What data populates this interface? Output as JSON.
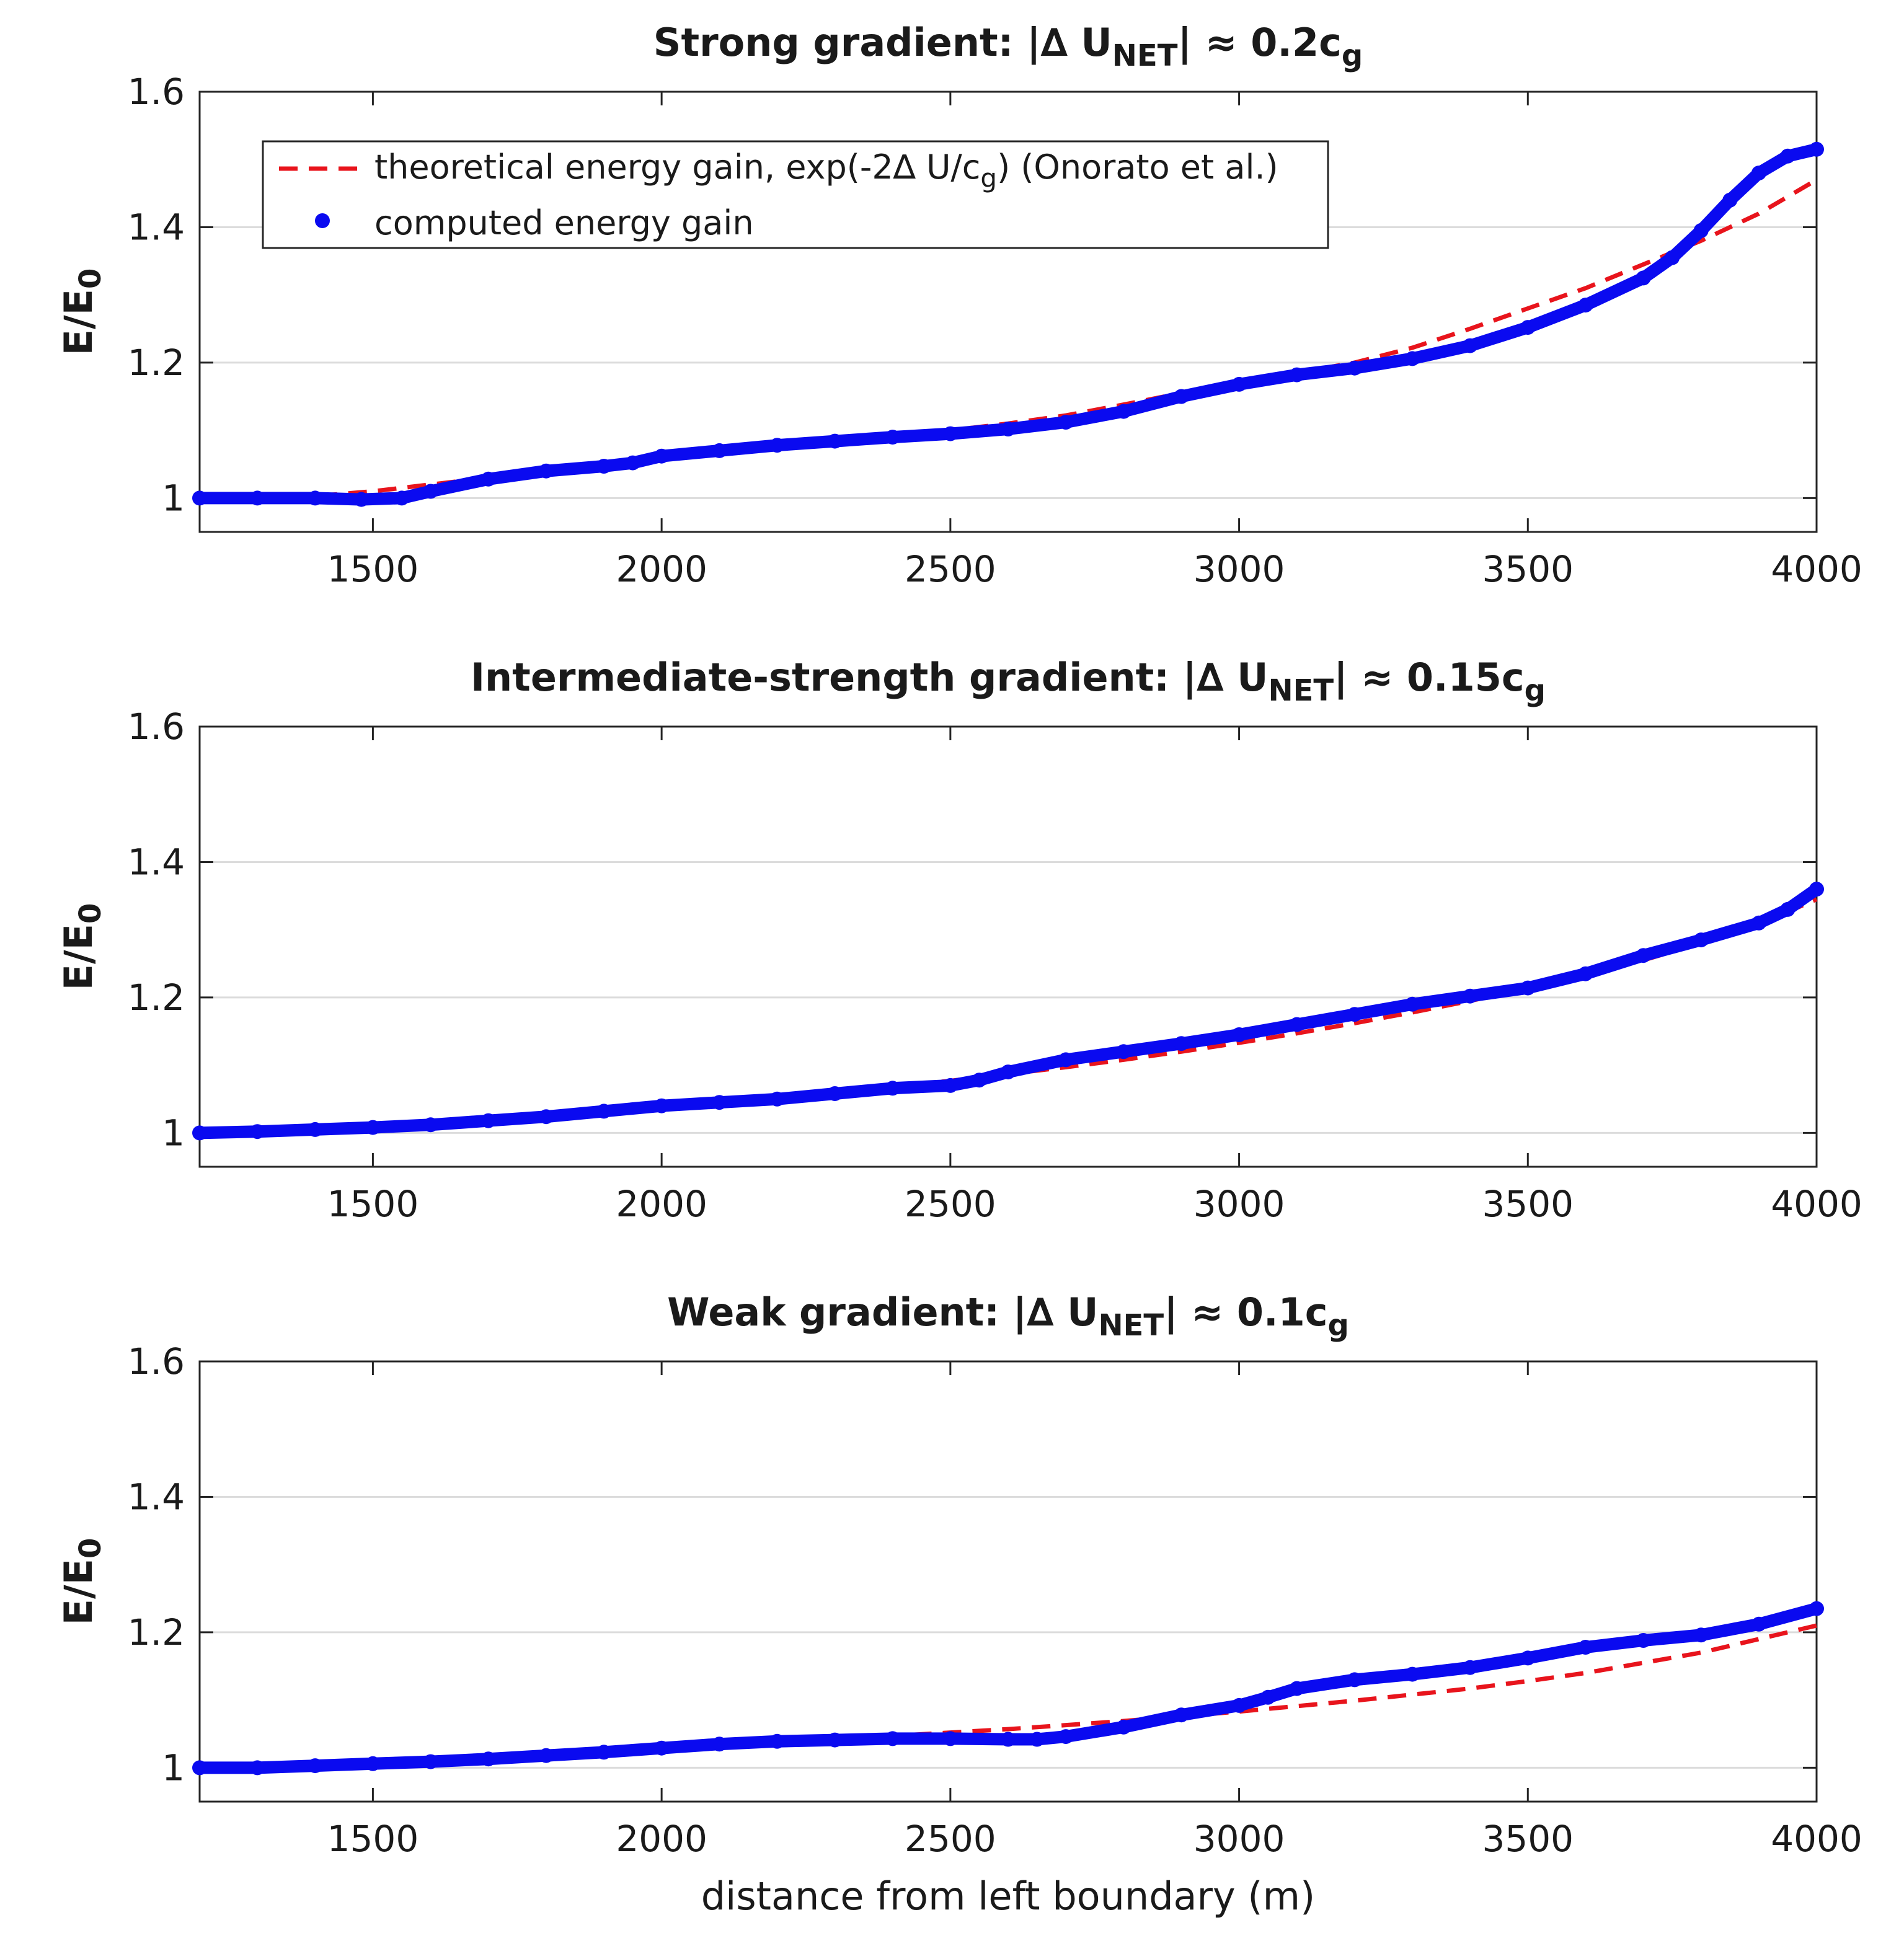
{
  "colors": {
    "theory": "#e8141c",
    "computed": "#0a0af0",
    "axis": "#262626",
    "grid": "#dcdcdc"
  },
  "legend": {
    "theory_label_main": "theoretical energy gain, exp(-2∆ U/c",
    "theory_label_sub": "g",
    "theory_label_tail": ") (Onorato et al.)",
    "computed_label": "computed energy gain",
    "placement": "top-left"
  },
  "xlabel": "distance from left boundary (m)",
  "ylabel_main": "E/E",
  "ylabel_sub": "0",
  "chart_data": [
    {
      "type": "line",
      "title_main": "Strong gradient: |∆ U",
      "title_sub1": "NET",
      "title_mid": "| ≈ 0.2c",
      "title_sub2": "g",
      "xlim": [
        1200,
        4000
      ],
      "ylim": [
        0.95,
        1.6
      ],
      "xticks": [
        "1500",
        "2000",
        "2500",
        "3000",
        "3500",
        "4000"
      ],
      "yticks": [
        "1",
        "1.2",
        "1.4",
        "1.6"
      ],
      "grid": "horizontal",
      "show_legend": true,
      "series": [
        {
          "name": "theoretical energy gain, exp(-2∆ U/c_g) (Onorato et al.)",
          "style": "dashed",
          "x": [
            1200,
            1300,
            1400,
            1500,
            1600,
            1700,
            1800,
            1900,
            2000,
            2100,
            2200,
            2300,
            2400,
            2500,
            2600,
            2700,
            2800,
            2900,
            3000,
            3100,
            3200,
            3300,
            3400,
            3500,
            3600,
            3700,
            3800,
            3900,
            4000
          ],
          "y": [
            1.0,
            1.0,
            1.003,
            1.01,
            1.02,
            1.03,
            1.04,
            1.05,
            1.058,
            1.066,
            1.075,
            1.083,
            1.09,
            1.1,
            1.11,
            1.122,
            1.138,
            1.155,
            1.17,
            1.185,
            1.2,
            1.222,
            1.25,
            1.28,
            1.31,
            1.345,
            1.38,
            1.42,
            1.47
          ]
        },
        {
          "name": "computed energy gain",
          "style": "dots",
          "x": [
            1200,
            1300,
            1400,
            1480,
            1550,
            1600,
            1700,
            1800,
            1900,
            1950,
            2000,
            2100,
            2200,
            2300,
            2400,
            2500,
            2600,
            2700,
            2800,
            2900,
            3000,
            3100,
            3200,
            3300,
            3400,
            3500,
            3600,
            3700,
            3750,
            3800,
            3850,
            3900,
            3950,
            4000
          ],
          "y": [
            1.0,
            1.0,
            1.0,
            0.998,
            1.0,
            1.01,
            1.028,
            1.04,
            1.047,
            1.052,
            1.062,
            1.07,
            1.078,
            1.084,
            1.09,
            1.095,
            1.102,
            1.112,
            1.128,
            1.15,
            1.168,
            1.182,
            1.192,
            1.206,
            1.225,
            1.252,
            1.285,
            1.325,
            1.355,
            1.395,
            1.44,
            1.48,
            1.505,
            1.515
          ]
        }
      ]
    },
    {
      "type": "line",
      "title_main": "Intermediate-strength gradient: |∆ U",
      "title_sub1": "NET",
      "title_mid": "| ≈ 0.15c",
      "title_sub2": "g",
      "xlim": [
        1200,
        4000
      ],
      "ylim": [
        0.95,
        1.6
      ],
      "xticks": [
        "1500",
        "2000",
        "2500",
        "3000",
        "3500",
        "4000"
      ],
      "yticks": [
        "1",
        "1.2",
        "1.4",
        "1.6"
      ],
      "grid": "horizontal",
      "show_legend": false,
      "series": [
        {
          "name": "theoretical energy gain, exp(-2∆ U/c_g) (Onorato et al.)",
          "style": "dashed",
          "x": [
            1200,
            1300,
            1400,
            1500,
            1600,
            1700,
            1800,
            1900,
            2000,
            2100,
            2200,
            2300,
            2400,
            2500,
            2600,
            2700,
            2800,
            2900,
            3000,
            3100,
            3200,
            3300,
            3400,
            3500,
            3600,
            3700,
            3800,
            3900,
            4000
          ],
          "y": [
            1.0,
            1.003,
            1.006,
            1.01,
            1.014,
            1.019,
            1.025,
            1.032,
            1.039,
            1.045,
            1.052,
            1.06,
            1.068,
            1.077,
            1.087,
            1.097,
            1.108,
            1.12,
            1.133,
            1.147,
            1.162,
            1.178,
            1.195,
            1.213,
            1.233,
            1.255,
            1.28,
            1.308,
            1.345
          ]
        },
        {
          "name": "computed energy gain",
          "style": "dots",
          "x": [
            1200,
            1300,
            1400,
            1500,
            1600,
            1700,
            1800,
            1900,
            2000,
            2100,
            2200,
            2300,
            2400,
            2500,
            2550,
            2600,
            2700,
            2800,
            2900,
            3000,
            3100,
            3200,
            3300,
            3400,
            3500,
            3600,
            3700,
            3800,
            3900,
            3950,
            4000
          ],
          "y": [
            1.0,
            1.002,
            1.005,
            1.008,
            1.012,
            1.018,
            1.024,
            1.032,
            1.04,
            1.045,
            1.05,
            1.058,
            1.066,
            1.07,
            1.078,
            1.09,
            1.108,
            1.12,
            1.132,
            1.145,
            1.16,
            1.175,
            1.19,
            1.202,
            1.214,
            1.235,
            1.262,
            1.285,
            1.31,
            1.33,
            1.36
          ]
        }
      ]
    },
    {
      "type": "line",
      "title_main": "Weak gradient: |∆ U",
      "title_sub1": "NET",
      "title_mid": "| ≈ 0.1c",
      "title_sub2": "g",
      "xlim": [
        1200,
        4000
      ],
      "ylim": [
        0.95,
        1.6
      ],
      "xticks": [
        "1500",
        "2000",
        "2500",
        "3000",
        "3500",
        "4000"
      ],
      "yticks": [
        "1",
        "1.2",
        "1.4",
        "1.6"
      ],
      "grid": "horizontal",
      "show_legend": false,
      "series": [
        {
          "name": "theoretical energy gain, exp(-2∆ U/c_g) (Onorato et al.)",
          "style": "dashed",
          "x": [
            1200,
            1300,
            1400,
            1500,
            1600,
            1700,
            1800,
            1900,
            2000,
            2100,
            2200,
            2300,
            2400,
            2500,
            2600,
            2700,
            2800,
            2900,
            3000,
            3100,
            3200,
            3300,
            3400,
            3500,
            3600,
            3700,
            3800,
            3900,
            4000
          ],
          "y": [
            1.0,
            1.001,
            1.003,
            1.006,
            1.009,
            1.013,
            1.017,
            1.022,
            1.027,
            1.032,
            1.037,
            1.042,
            1.047,
            1.052,
            1.057,
            1.063,
            1.069,
            1.076,
            1.083,
            1.091,
            1.099,
            1.108,
            1.117,
            1.128,
            1.14,
            1.155,
            1.17,
            1.19,
            1.21
          ]
        },
        {
          "name": "computed energy gain",
          "style": "dots",
          "x": [
            1200,
            1300,
            1400,
            1500,
            1600,
            1700,
            1800,
            1900,
            2000,
            2100,
            2200,
            2300,
            2400,
            2500,
            2600,
            2650,
            2700,
            2800,
            2900,
            3000,
            3050,
            3100,
            3200,
            3300,
            3400,
            3500,
            3600,
            3700,
            3800,
            3900,
            4000
          ],
          "y": [
            1.0,
            1.0,
            1.003,
            1.006,
            1.009,
            1.013,
            1.018,
            1.023,
            1.029,
            1.035,
            1.039,
            1.041,
            1.043,
            1.043,
            1.042,
            1.042,
            1.046,
            1.06,
            1.078,
            1.092,
            1.104,
            1.117,
            1.13,
            1.138,
            1.148,
            1.162,
            1.178,
            1.188,
            1.196,
            1.212,
            1.235
          ]
        }
      ]
    }
  ]
}
